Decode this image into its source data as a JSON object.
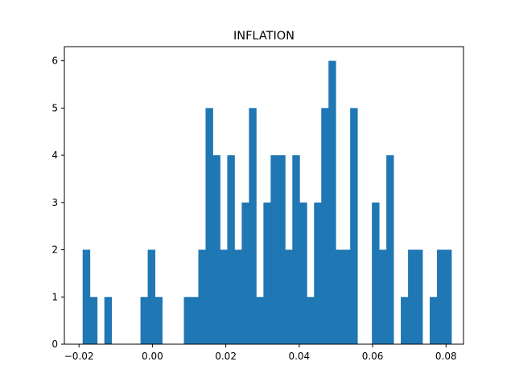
{
  "chart_data": {
    "type": "bar",
    "title": "INFLATION",
    "xlabel": "",
    "ylabel": "",
    "bar_color": "#1f77b4",
    "bin_start": -0.019,
    "bin_width": 0.00197,
    "counts": [
      2,
      1,
      0,
      1,
      0,
      0,
      0,
      0,
      1,
      2,
      1,
      0,
      0,
      0,
      1,
      1,
      2,
      5,
      4,
      2,
      4,
      2,
      3,
      5,
      1,
      3,
      4,
      4,
      2,
      4,
      3,
      1,
      3,
      5,
      6,
      2,
      2,
      5,
      0,
      0,
      3,
      2,
      4,
      0,
      1,
      2,
      2,
      0,
      1,
      2,
      2
    ],
    "xlim": [
      -0.02398,
      0.08476
    ],
    "ylim": [
      0,
      6.3
    ],
    "x_ticks": [
      -0.02,
      0.0,
      0.02,
      0.04,
      0.06,
      0.08
    ],
    "x_tick_labels": [
      "−0.02",
      "0.00",
      "0.02",
      "0.04",
      "0.06",
      "0.08"
    ],
    "y_ticks": [
      0,
      1,
      2,
      3,
      4,
      5,
      6
    ],
    "y_tick_labels": [
      "0",
      "1",
      "2",
      "3",
      "4",
      "5",
      "6"
    ],
    "grid": false,
    "legend": "none"
  }
}
